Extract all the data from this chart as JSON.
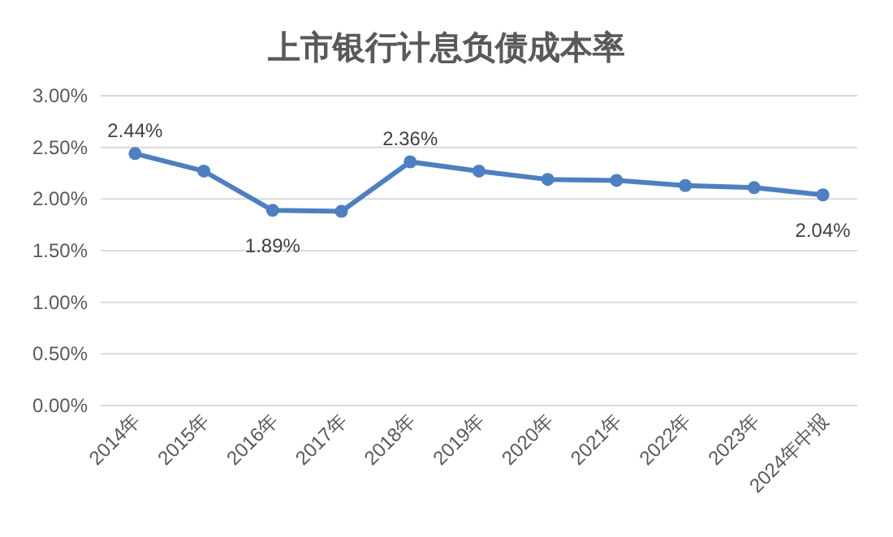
{
  "chart_data": {
    "type": "line",
    "title": "上市银行计息负债成本率",
    "categories": [
      "2014年",
      "2015年",
      "2016年",
      "2017年",
      "2018年",
      "2019年",
      "2020年",
      "2021年",
      "2022年",
      "2023年",
      "2024年中报"
    ],
    "series": [
      {
        "color": "#4e7fc0",
        "values": [
          2.44,
          2.27,
          1.89,
          1.88,
          2.36,
          2.27,
          2.19,
          2.18,
          2.13,
          2.11,
          2.04
        ],
        "value_labels": [
          "2.44%",
          null,
          "1.89%",
          null,
          "2.36%",
          null,
          null,
          null,
          null,
          null,
          "2.04%"
        ]
      }
    ],
    "ylim": [
      0,
      3
    ],
    "yticks": [
      {
        "value": 0,
        "label": "0.00%"
      },
      {
        "value": 0.5,
        "label": "0.50%"
      },
      {
        "value": 1,
        "label": "1.00%"
      },
      {
        "value": 1.5,
        "label": "1.50%"
      },
      {
        "value": 2,
        "label": "2.00%"
      },
      {
        "value": 2.5,
        "label": "2.50%"
      },
      {
        "value": 3,
        "label": "3.00%"
      }
    ],
    "grid": "y",
    "marker": "circle",
    "line_style": "solid"
  }
}
